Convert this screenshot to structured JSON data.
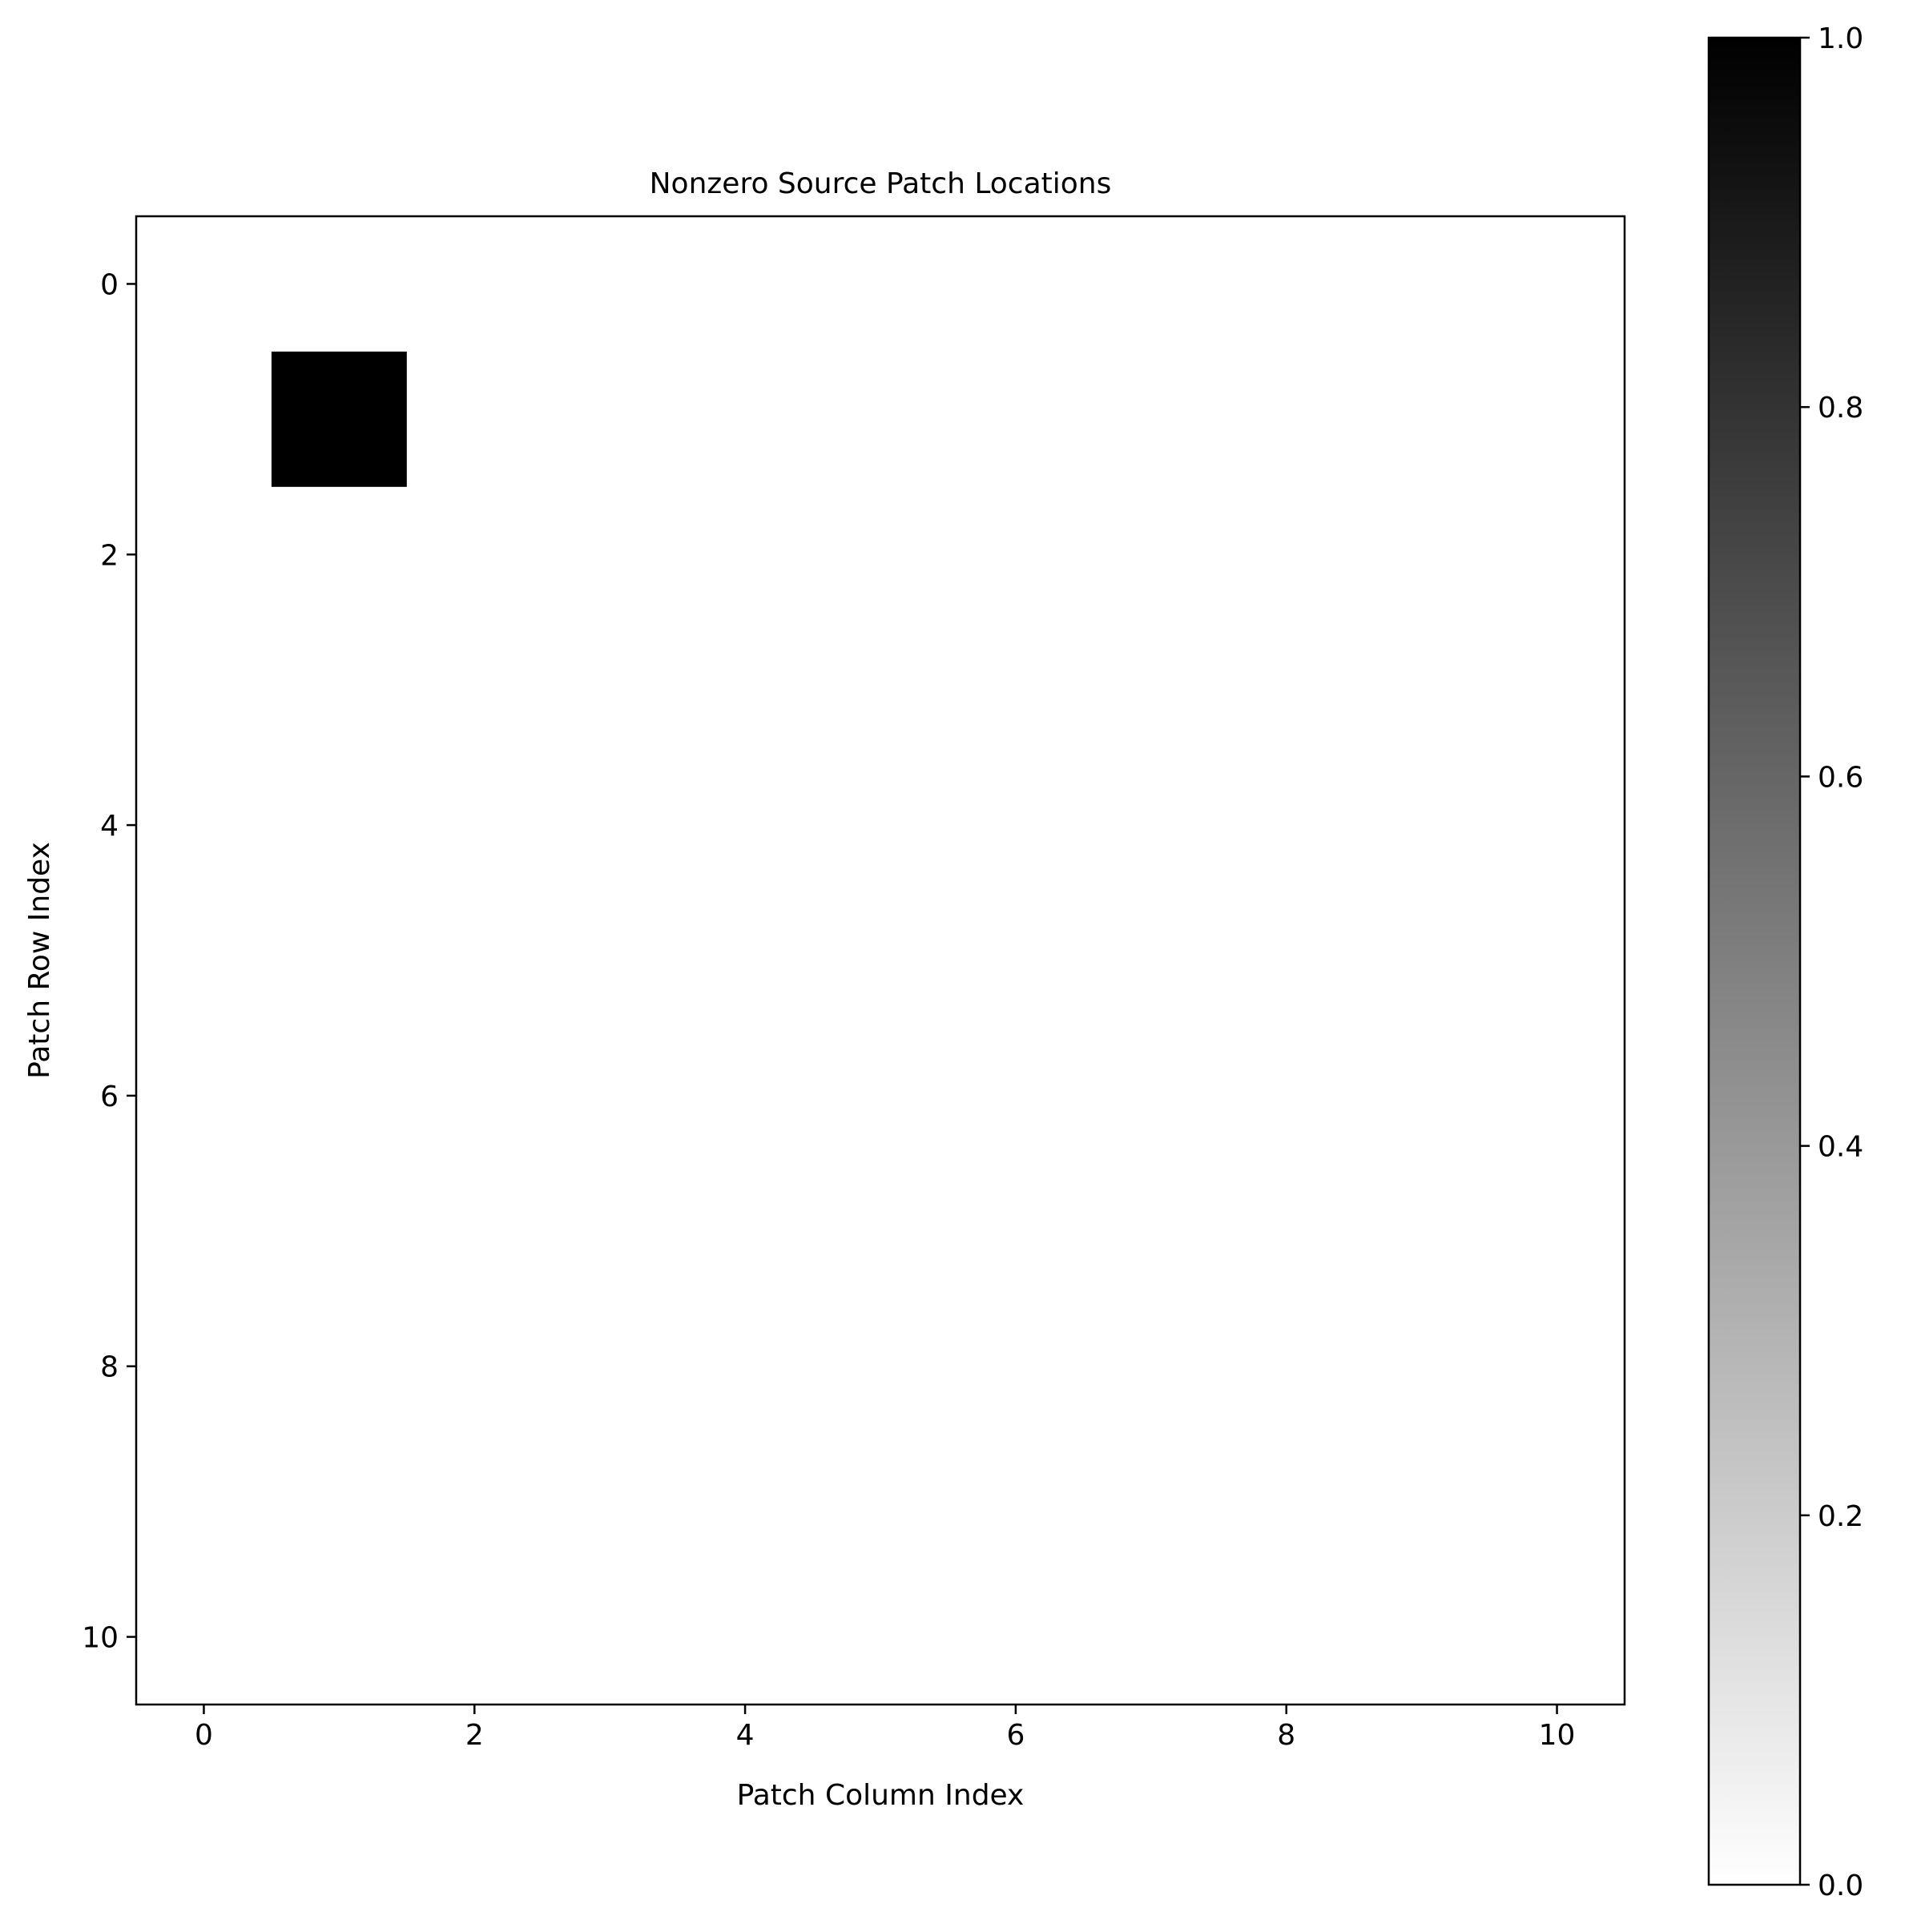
{
  "chart_data": {
    "type": "heatmap",
    "title": "Nonzero Source Patch Locations",
    "xlabel": "Patch Column Index",
    "ylabel": "Patch Row Index",
    "rows": 11,
    "cols": 11,
    "xlim": [
      -0.5,
      10.5
    ],
    "ylim": [
      10.5,
      -0.5
    ],
    "xticks": [
      0,
      2,
      4,
      6,
      8,
      10
    ],
    "yticks": [
      0,
      2,
      4,
      6,
      8,
      10
    ],
    "colormap": "gray_r",
    "colormap_colors": {
      "low": "#ffffff",
      "high": "#000000"
    },
    "grid": false,
    "nonzero_cells": [
      {
        "row": 1,
        "col": 1,
        "value": 1.0
      }
    ],
    "colorbar": {
      "range": [
        0.0,
        1.0
      ],
      "ticks": [
        0.0,
        0.2,
        0.4,
        0.6,
        0.8,
        1.0
      ],
      "tick_labels": [
        "0.0",
        "0.2",
        "0.4",
        "0.6",
        "0.8",
        "1.0"
      ]
    }
  }
}
